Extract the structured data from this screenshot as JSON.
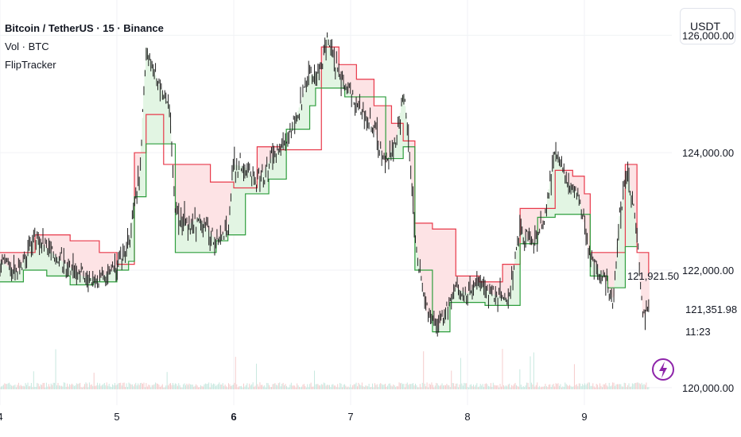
{
  "legend": {
    "title": "Bitcoin / TetherUS · 15 · Binance",
    "volume": "Vol · BTC",
    "indicator": "FlipTracker"
  },
  "currency_button": "USDT",
  "price_axis": {
    "ticks": [
      {
        "value": 126000,
        "label": "126,000.00"
      },
      {
        "value": 124000,
        "label": "124,000.00"
      },
      {
        "value": 122000,
        "label": "122,000.00"
      },
      {
        "value": 120000,
        "label": "120,000.00"
      }
    ],
    "current_price": "121,351.98",
    "countdown": "11:23",
    "flip_value_label": "121,921.50"
  },
  "colors": {
    "candle": "#1e1e1e",
    "resistance": "#e8394a",
    "support": "#2e9e3d",
    "resistance_fill": "#fde3e5",
    "support_fill": "#e2f5e3",
    "volume_up": "#c7e8df",
    "volume_down": "#f5cccc",
    "grid": "#f0f2f5",
    "accent": "#8e24aa"
  },
  "chart_data": {
    "type": "line",
    "title": "Bitcoin / TetherUS · 15 · Binance",
    "x_ticks": [
      {
        "label": "4",
        "bold": false
      },
      {
        "label": "5",
        "bold": false
      },
      {
        "label": "6",
        "bold": true
      },
      {
        "label": "7",
        "bold": false
      },
      {
        "label": "8",
        "bold": false
      },
      {
        "label": "9",
        "bold": false
      }
    ],
    "ylim": [
      119700,
      126600
    ],
    "price_path": [
      [
        0,
        122150
      ],
      [
        0.15,
        121950
      ],
      [
        0.3,
        122550
      ],
      [
        0.5,
        122200
      ],
      [
        0.7,
        121900
      ],
      [
        0.85,
        121850
      ],
      [
        1.0,
        122050
      ],
      [
        1.1,
        122400
      ],
      [
        1.2,
        123700
      ],
      [
        1.25,
        125800
      ],
      [
        1.35,
        125200
      ],
      [
        1.45,
        124800
      ],
      [
        1.5,
        123000
      ],
      [
        1.6,
        122750
      ],
      [
        1.7,
        122900
      ],
      [
        1.85,
        122500
      ],
      [
        1.95,
        122700
      ],
      [
        2.0,
        123800
      ],
      [
        2.1,
        123750
      ],
      [
        2.2,
        123500
      ],
      [
        2.3,
        123850
      ],
      [
        2.45,
        124200
      ],
      [
        2.55,
        124700
      ],
      [
        2.65,
        125300
      ],
      [
        2.75,
        125400
      ],
      [
        2.8,
        126000
      ],
      [
        2.9,
        125300
      ],
      [
        3.0,
        125000
      ],
      [
        3.1,
        124700
      ],
      [
        3.2,
        124400
      ],
      [
        3.3,
        123800
      ],
      [
        3.4,
        124300
      ],
      [
        3.45,
        125050
      ],
      [
        3.5,
        124200
      ],
      [
        3.55,
        122600
      ],
      [
        3.65,
        121300
      ],
      [
        3.75,
        121000
      ],
      [
        3.9,
        121700
      ],
      [
        4.0,
        121600
      ],
      [
        4.1,
        121800
      ],
      [
        4.2,
        121600
      ],
      [
        4.35,
        121500
      ],
      [
        4.45,
        122700
      ],
      [
        4.55,
        122400
      ],
      [
        4.65,
        122800
      ],
      [
        4.75,
        124050
      ],
      [
        4.85,
        123500
      ],
      [
        4.95,
        123300
      ],
      [
        5.05,
        122200
      ],
      [
        5.15,
        121950
      ],
      [
        5.25,
        121500
      ],
      [
        5.3,
        122900
      ],
      [
        5.37,
        123700
      ],
      [
        5.45,
        122700
      ],
      [
        5.5,
        121200
      ],
      [
        5.55,
        121351.98
      ]
    ],
    "series": [
      {
        "name": "Resistance",
        "values": [
          [
            0,
            122300
          ],
          [
            0.3,
            122600
          ],
          [
            0.6,
            122500
          ],
          [
            0.85,
            122300
          ],
          [
            1.0,
            122100
          ],
          [
            1.15,
            124000
          ],
          [
            1.25,
            124650
          ],
          [
            1.35,
            124650
          ],
          [
            1.4,
            123800
          ],
          [
            1.6,
            123800
          ],
          [
            1.8,
            123500
          ],
          [
            2.0,
            123400
          ],
          [
            2.2,
            124100
          ],
          [
            2.4,
            124050
          ],
          [
            2.75,
            125800
          ],
          [
            2.9,
            125500
          ],
          [
            3.05,
            125250
          ],
          [
            3.2,
            124800
          ],
          [
            3.35,
            124500
          ],
          [
            3.45,
            124200
          ],
          [
            3.55,
            122800
          ],
          [
            3.7,
            122700
          ],
          [
            3.9,
            121900
          ],
          [
            4.1,
            121800
          ],
          [
            4.3,
            122100
          ],
          [
            4.45,
            123050
          ],
          [
            4.6,
            123050
          ],
          [
            4.75,
            123700
          ],
          [
            4.9,
            123600
          ],
          [
            5.0,
            123300
          ],
          [
            5.05,
            122300
          ],
          [
            5.2,
            122300
          ],
          [
            5.35,
            123800
          ],
          [
            5.45,
            122300
          ],
          [
            5.55,
            121900
          ]
        ]
      },
      {
        "name": "Support",
        "values": [
          [
            0,
            121800
          ],
          [
            0.2,
            122000
          ],
          [
            0.4,
            121900
          ],
          [
            0.6,
            121750
          ],
          [
            0.8,
            121800
          ],
          [
            1.0,
            122000
          ],
          [
            1.1,
            122150
          ],
          [
            1.15,
            123250
          ],
          [
            1.25,
            124150
          ],
          [
            1.35,
            124150
          ],
          [
            1.45,
            124150
          ],
          [
            1.5,
            122300
          ],
          [
            1.7,
            122300
          ],
          [
            1.85,
            122500
          ],
          [
            1.95,
            122600
          ],
          [
            2.1,
            123300
          ],
          [
            2.3,
            123550
          ],
          [
            2.45,
            124400
          ],
          [
            2.65,
            124800
          ],
          [
            2.7,
            125100
          ],
          [
            2.85,
            125100
          ],
          [
            2.95,
            124950
          ],
          [
            3.05,
            124950
          ],
          [
            3.3,
            123900
          ],
          [
            3.45,
            124100
          ],
          [
            3.55,
            122000
          ],
          [
            3.7,
            120950
          ],
          [
            3.85,
            121450
          ],
          [
            4.0,
            121450
          ],
          [
            4.15,
            121400
          ],
          [
            4.3,
            121400
          ],
          [
            4.45,
            122450
          ],
          [
            4.6,
            122900
          ],
          [
            4.75,
            122950
          ],
          [
            4.9,
            122950
          ],
          [
            5.05,
            121900
          ],
          [
            5.2,
            121700
          ],
          [
            5.35,
            122400
          ],
          [
            5.45,
            122400
          ]
        ]
      }
    ],
    "volume_scale": [
      0,
      10
    ]
  }
}
